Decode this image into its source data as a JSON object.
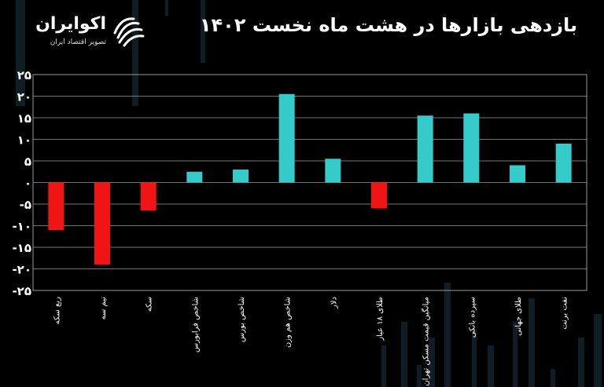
{
  "header": {
    "title": "بازدهی بازارها در هشت ماه نخست ۱۴۰۲",
    "brand_name": "اکوایران",
    "brand_tagline": "تصویر اقتصاد ایران"
  },
  "colors": {
    "positive": "#35CBCB",
    "negative": "#F01414",
    "grid": "#9a9a9a",
    "background": "#000000",
    "text": "#ffffff"
  },
  "chart_data": {
    "type": "bar",
    "title": "بازدهی بازارها در هشت ماه نخست ۱۴۰۲",
    "xlabel": "",
    "ylabel": "",
    "categories": [
      "ربع سکه",
      "نیم سه",
      "سکه",
      "شاخص فرابورس",
      "شاخص بورس",
      "شاخص هم وزن",
      "دلار",
      "طلای ۱۸ عیار",
      "میانگین قیمت مسکن تهران",
      "سپرده بانکی",
      "طلای جهانی",
      "نفت برنت"
    ],
    "values": [
      -11,
      -19,
      -6.5,
      2.5,
      3,
      20.5,
      5.5,
      -6,
      15.5,
      16,
      4,
      9
    ],
    "ylim": [
      -25,
      25
    ],
    "yticks": [
      -25,
      -20,
      -15,
      -10,
      -5,
      0,
      5,
      10,
      15,
      20,
      25
    ],
    "ytick_labels": [
      "-۲۵",
      "-۲۰",
      "-۱۵",
      "-۱۰",
      "-۵",
      "۰",
      "۵",
      "۱۰",
      "۱۵",
      "۲۰",
      "۲۵"
    ],
    "grid": true,
    "legend": "none"
  }
}
